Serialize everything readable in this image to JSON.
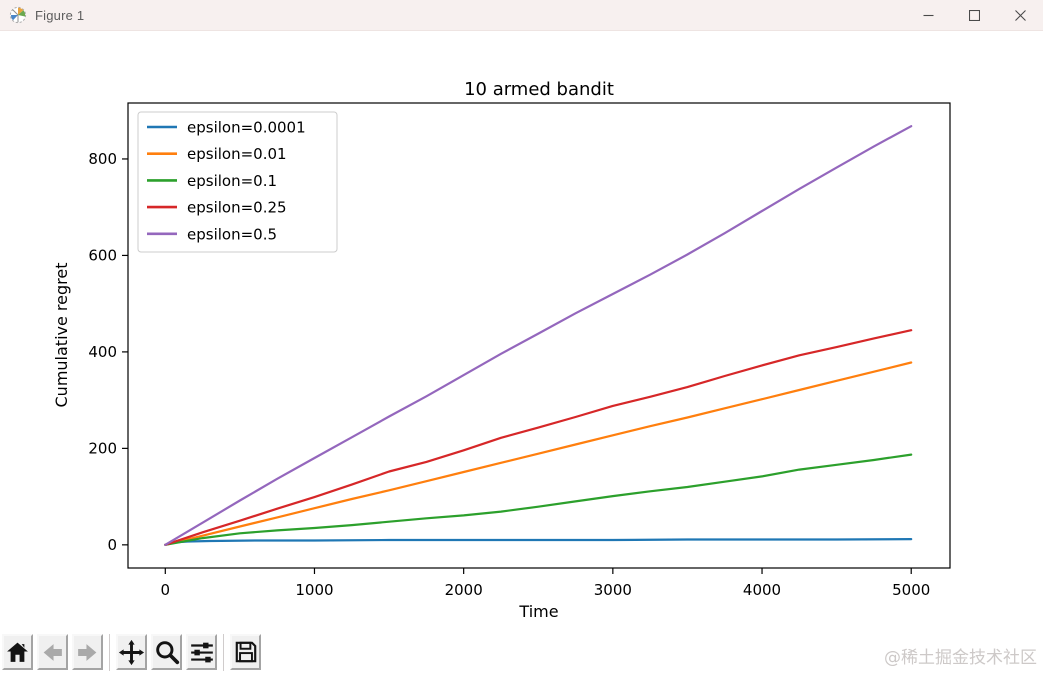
{
  "window": {
    "title": "Figure 1"
  },
  "chart_data": {
    "type": "line",
    "title": "10 armed bandit",
    "xlabel": "Time",
    "ylabel": "Cumulative regret",
    "xlim": [
      -250,
      5260
    ],
    "ylim": [
      -48,
      916
    ],
    "xticks": [
      0,
      1000,
      2000,
      3000,
      4000,
      5000
    ],
    "yticks": [
      0,
      200,
      400,
      600,
      800
    ],
    "grid": false,
    "legend_position": "upper left",
    "series": [
      {
        "label": "epsilon=0.0001",
        "color": "#1f77b4",
        "points": [
          [
            0,
            0
          ],
          [
            60,
            5
          ],
          [
            150,
            7
          ],
          [
            300,
            8
          ],
          [
            600,
            9
          ],
          [
            1000,
            9
          ],
          [
            1500,
            10
          ],
          [
            2000,
            10
          ],
          [
            2500,
            10
          ],
          [
            3000,
            10
          ],
          [
            3500,
            11
          ],
          [
            4000,
            11
          ],
          [
            4500,
            11
          ],
          [
            5000,
            12
          ]
        ]
      },
      {
        "label": "epsilon=0.01",
        "color": "#ff7f0e",
        "points": [
          [
            0,
            0
          ],
          [
            250,
            19
          ],
          [
            500,
            38
          ],
          [
            750,
            57
          ],
          [
            1000,
            76
          ],
          [
            1250,
            95
          ],
          [
            1500,
            113
          ],
          [
            1750,
            132
          ],
          [
            2000,
            151
          ],
          [
            2250,
            170
          ],
          [
            2500,
            189
          ],
          [
            2750,
            208
          ],
          [
            3000,
            227
          ],
          [
            3250,
            246
          ],
          [
            3500,
            264
          ],
          [
            3750,
            283
          ],
          [
            4000,
            302
          ],
          [
            4250,
            321
          ],
          [
            4500,
            340
          ],
          [
            4750,
            359
          ],
          [
            5000,
            378
          ]
        ]
      },
      {
        "label": "epsilon=0.1",
        "color": "#2ca02c",
        "points": [
          [
            0,
            0
          ],
          [
            250,
            14
          ],
          [
            500,
            24
          ],
          [
            750,
            30
          ],
          [
            1000,
            35
          ],
          [
            1250,
            41
          ],
          [
            1500,
            48
          ],
          [
            1750,
            55
          ],
          [
            2000,
            61
          ],
          [
            2250,
            69
          ],
          [
            2500,
            79
          ],
          [
            2750,
            90
          ],
          [
            3000,
            101
          ],
          [
            3250,
            111
          ],
          [
            3500,
            120
          ],
          [
            3750,
            131
          ],
          [
            4000,
            142
          ],
          [
            4250,
            156
          ],
          [
            4500,
            166
          ],
          [
            4750,
            176
          ],
          [
            5000,
            187
          ]
        ]
      },
      {
        "label": "epsilon=0.25",
        "color": "#d62728",
        "points": [
          [
            0,
            0
          ],
          [
            250,
            26
          ],
          [
            500,
            50
          ],
          [
            750,
            75
          ],
          [
            1000,
            99
          ],
          [
            1250,
            125
          ],
          [
            1500,
            152
          ],
          [
            1750,
            172
          ],
          [
            2000,
            196
          ],
          [
            2250,
            222
          ],
          [
            2500,
            243
          ],
          [
            2750,
            265
          ],
          [
            3000,
            288
          ],
          [
            3250,
            307
          ],
          [
            3500,
            327
          ],
          [
            3750,
            350
          ],
          [
            4000,
            372
          ],
          [
            4250,
            393
          ],
          [
            4500,
            410
          ],
          [
            4750,
            428
          ],
          [
            5000,
            445
          ]
        ]
      },
      {
        "label": "epsilon=0.5",
        "color": "#9467bd",
        "points": [
          [
            0,
            0
          ],
          [
            250,
            46
          ],
          [
            500,
            92
          ],
          [
            750,
            137
          ],
          [
            1000,
            180
          ],
          [
            1250,
            223
          ],
          [
            1500,
            266
          ],
          [
            1750,
            308
          ],
          [
            2000,
            352
          ],
          [
            2250,
            396
          ],
          [
            2500,
            438
          ],
          [
            2750,
            480
          ],
          [
            3000,
            520
          ],
          [
            3250,
            560
          ],
          [
            3500,
            602
          ],
          [
            3750,
            646
          ],
          [
            4000,
            692
          ],
          [
            4250,
            738
          ],
          [
            4500,
            782
          ],
          [
            4750,
            826
          ],
          [
            5000,
            868
          ]
        ]
      }
    ]
  },
  "toolbar": {
    "buttons": [
      {
        "name": "home",
        "enabled": true
      },
      {
        "name": "back",
        "enabled": false
      },
      {
        "name": "forward",
        "enabled": false
      },
      {
        "name": "pan",
        "enabled": true
      },
      {
        "name": "zoom",
        "enabled": true
      },
      {
        "name": "configure-subplots",
        "enabled": true
      },
      {
        "name": "save",
        "enabled": true
      }
    ]
  },
  "watermark": "@稀土掘金技术社区"
}
